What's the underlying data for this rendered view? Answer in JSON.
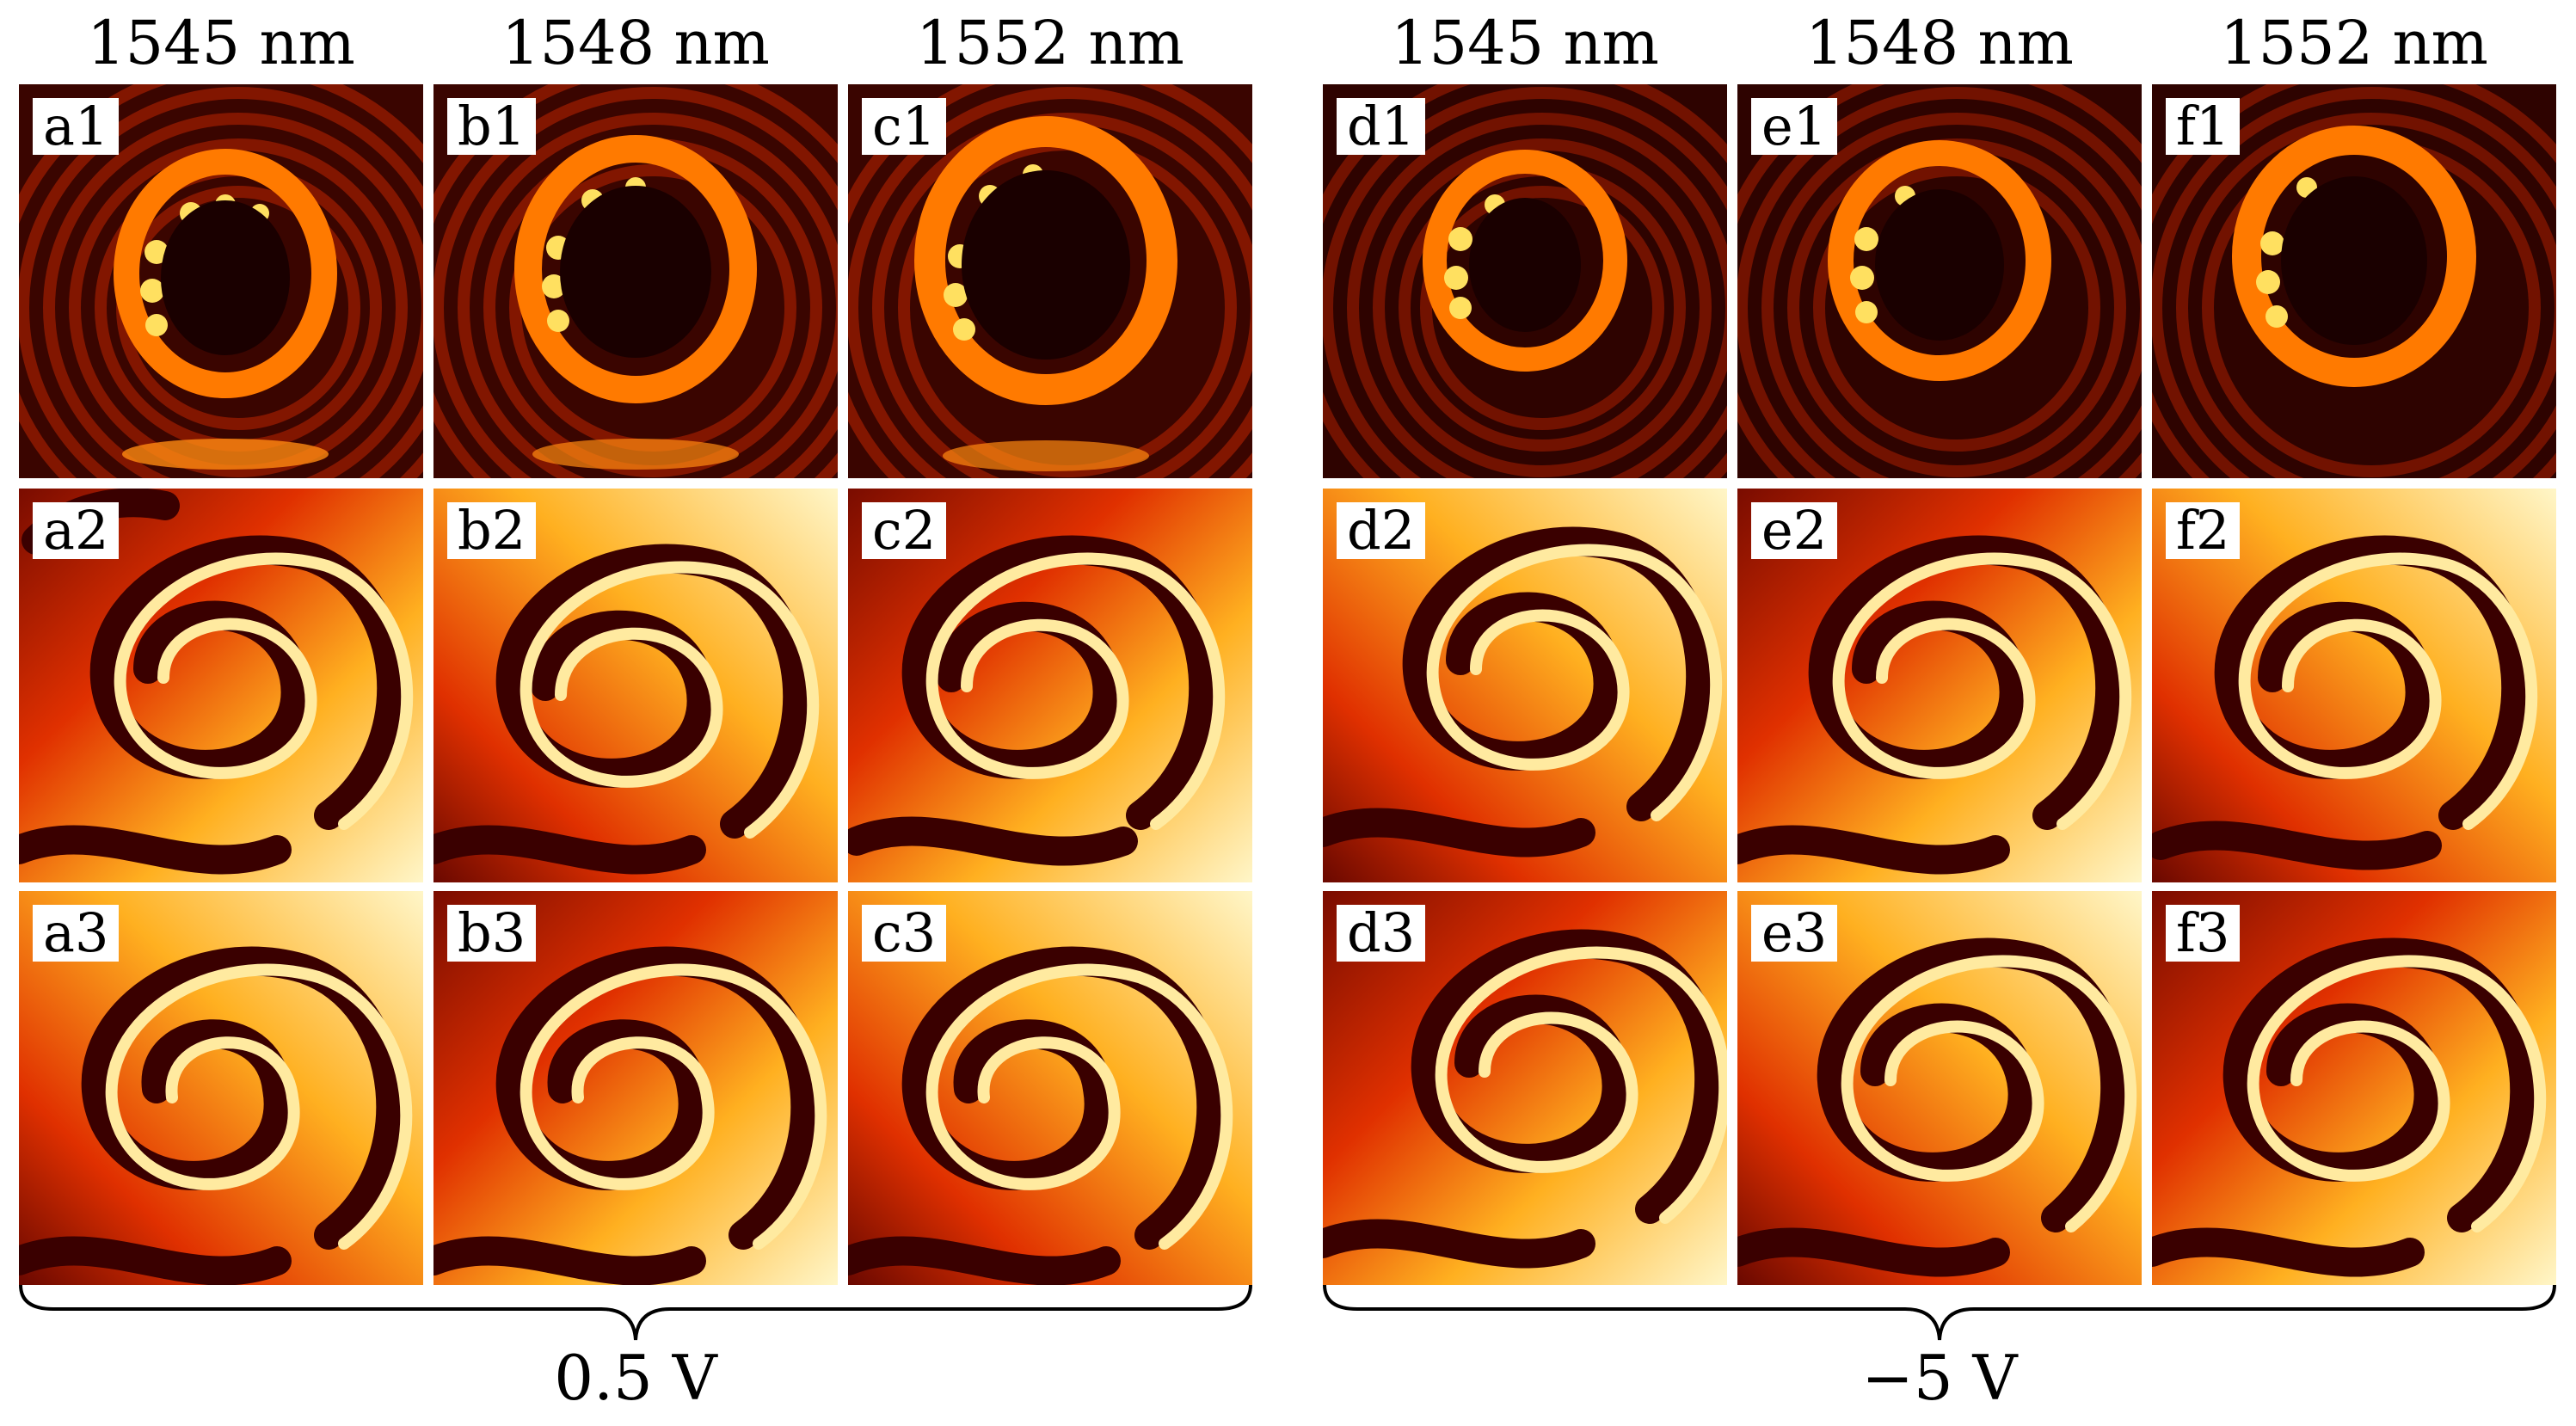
{
  "groups": [
    {
      "voltage": "0.5 V",
      "wavelengths": [
        "1545 nm",
        "1548 nm",
        "1552 nm"
      ],
      "panels": [
        [
          "a1",
          "b1",
          "c1"
        ],
        [
          "a2",
          "b2",
          "c2"
        ],
        [
          "a3",
          "b3",
          "c3"
        ]
      ]
    },
    {
      "voltage": "−5 V",
      "wavelengths": [
        "1545 nm",
        "1548 nm",
        "1552 nm"
      ],
      "panels": [
        [
          "d1",
          "e1",
          "f1"
        ],
        [
          "d2",
          "e2",
          "f2"
        ],
        [
          "d3",
          "e3",
          "f3"
        ]
      ]
    }
  ],
  "colors": {
    "dark": "#2a0000",
    "red": "#c81e00",
    "orange": "#ff8a00",
    "yellow": "#ffe23a",
    "white": "#fffbe8"
  }
}
